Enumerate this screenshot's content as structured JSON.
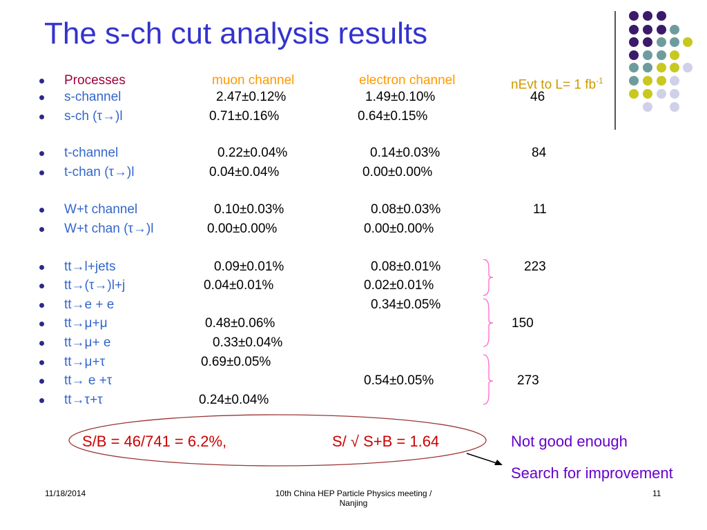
{
  "title": "The s-ch cut analysis results",
  "header": {
    "processes": "Processes",
    "muon_channel": "muon channel",
    "electron_channel": "electron channel",
    "nevt": "nEvt to L= 1 fb",
    "nevt_sup": "-1"
  },
  "rows": [
    {
      "label": "s-channel",
      "muon": "2.47±0.12%",
      "electron": "1.49±0.10%",
      "nevt": "46"
    },
    {
      "label": "s-ch (τ→)l",
      "muon": "0.71±0.16%",
      "electron": "0.64±0.15%",
      "nevt": ""
    },
    {
      "label": "t-channel",
      "muon": "0.22±0.04%",
      "electron": "0.14±0.03%",
      "nevt": "84"
    },
    {
      "label": "t-chan (τ→)l",
      "muon": "0.04±0.04%",
      "electron": "0.00±0.00%",
      "nevt": ""
    },
    {
      "label": "W+t channel",
      "muon": "0.10±0.03%",
      "electron": "0.08±0.03%",
      "nevt": "11"
    },
    {
      "label": "W+t chan (τ→)l",
      "muon": "0.00±0.00%",
      "electron": "0.00±0.00%",
      "nevt": ""
    },
    {
      "label": "tt→l+jets",
      "muon": "0.09±0.01%",
      "electron": "0.08±0.01%",
      "nevt": "223"
    },
    {
      "label": "tt→(τ→)l+j",
      "muon": "0.04±0.01%",
      "electron": "0.02±0.01%",
      "nevt": ""
    },
    {
      "label": "tt→e + e",
      "muon": "",
      "electron": "0.34±0.05%",
      "nevt": ""
    },
    {
      "label": "tt→μ+μ",
      "muon": "0.48±0.06%",
      "electron": "",
      "nevt": "150"
    },
    {
      "label": "tt→μ+ e",
      "muon": "0.33±0.04%",
      "electron": "",
      "nevt": ""
    },
    {
      "label": "tt→μ+τ",
      "muon": "0.69±0.05%",
      "electron": "",
      "nevt": ""
    },
    {
      "label": "tt→ e +τ",
      "muon": "",
      "electron": "0.54±0.05%",
      "nevt": "273"
    },
    {
      "label": "tt→τ+τ",
      "muon": "0.24±0.04%",
      "electron": "",
      "nevt": ""
    }
  ],
  "summary": {
    "sb": "S/B = 46/741 = 6.2%,",
    "significance": "S/ √ S+B = 1.64",
    "verdict": "Not good enough",
    "action": "Search for improvement"
  },
  "footer": {
    "date": "11/18/2014",
    "event_line1": "10th China HEP Particle Physics meeting /",
    "event_line2": "Nanjing",
    "page": "11"
  },
  "colors": {
    "title": "#3333cc",
    "label": "#3366cc",
    "header_label": "#a0003a",
    "header_cols": "#ff9900",
    "summary_red": "#cc0000",
    "summary_purple": "#6600cc",
    "brace": "#ff66cc",
    "ellipse": "#993333",
    "dot_purple": "#3b1a6b",
    "dot_teal": "#6e9c9c",
    "dot_yellow": "#c8c820",
    "dot_lavender": "#d0d0e8"
  }
}
